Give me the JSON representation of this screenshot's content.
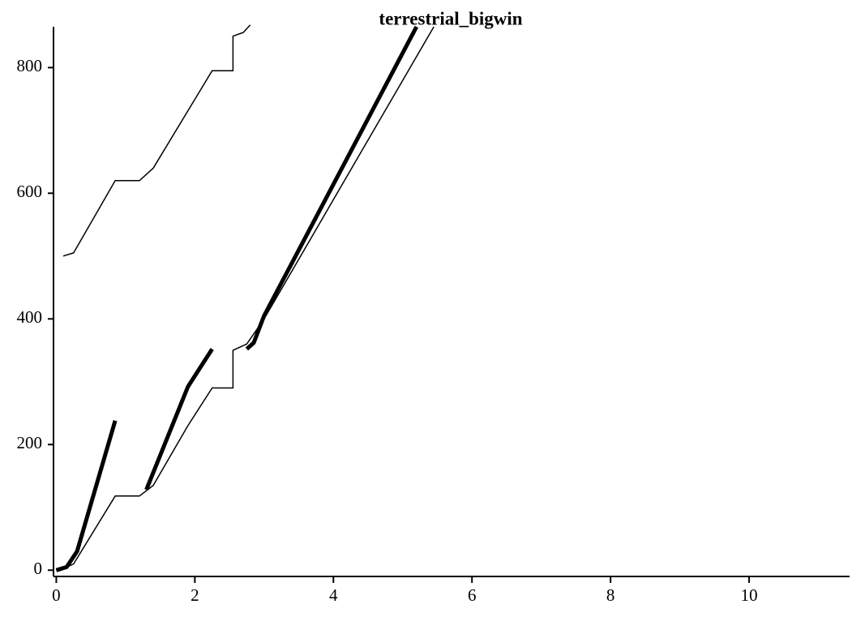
{
  "chart_data": {
    "type": "line",
    "title": "terrestrial_bigwin",
    "xlim": [
      -0.04,
      11.45
    ],
    "ylim": [
      -10,
      865
    ],
    "xticks": [
      0,
      2,
      4,
      6,
      8,
      10
    ],
    "yticks": [
      0,
      200,
      400,
      600,
      800
    ],
    "series": [
      {
        "color": "#000000",
        "width": 1.5,
        "x": [
          0,
          0.1,
          0.25,
          0.85,
          1.2,
          1.4,
          1.9,
          2.25,
          2.55,
          2.55,
          2.75,
          3.0,
          5.45
        ],
        "values": [
          0,
          2,
          10,
          118,
          118,
          135,
          230,
          290,
          290,
          350,
          360,
          400,
          865
        ]
      },
      {
        "color": "#000000",
        "width": 5,
        "x": [
          0,
          0.15,
          0.3,
          0.85,
          null,
          1.3,
          1.9,
          2.25,
          null,
          2.75,
          2.85,
          3.0,
          5.2
        ],
        "values": [
          0,
          5,
          30,
          238,
          null,
          128,
          292,
          352,
          null,
          352,
          362,
          405,
          865
        ]
      },
      {
        "color": "#000000",
        "width": 1.5,
        "x": [
          0.1,
          0.25,
          0.85,
          1.2,
          1.4,
          2.25,
          2.55,
          2.55,
          2.7,
          2.8
        ],
        "values": [
          500,
          505,
          620,
          620,
          640,
          795,
          795,
          850,
          856,
          868
        ]
      }
    ]
  }
}
